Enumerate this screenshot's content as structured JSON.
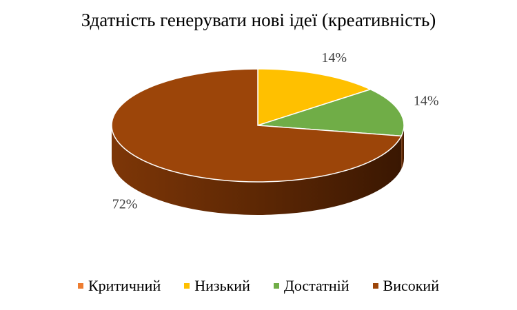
{
  "chart_data": {
    "type": "pie",
    "title": "Здатність генерувати нові ідеї (креативність)",
    "categories": [
      "Критичний",
      "Низький",
      "Достатній",
      "Високий"
    ],
    "values": [
      0,
      14,
      14,
      72
    ],
    "labels": [
      "",
      "14%",
      "14%",
      "72%"
    ],
    "colors": [
      "#ED7D31",
      "#FFC000",
      "#70AD47",
      "#9C4509"
    ],
    "legend_position": "bottom",
    "style": "3d"
  }
}
